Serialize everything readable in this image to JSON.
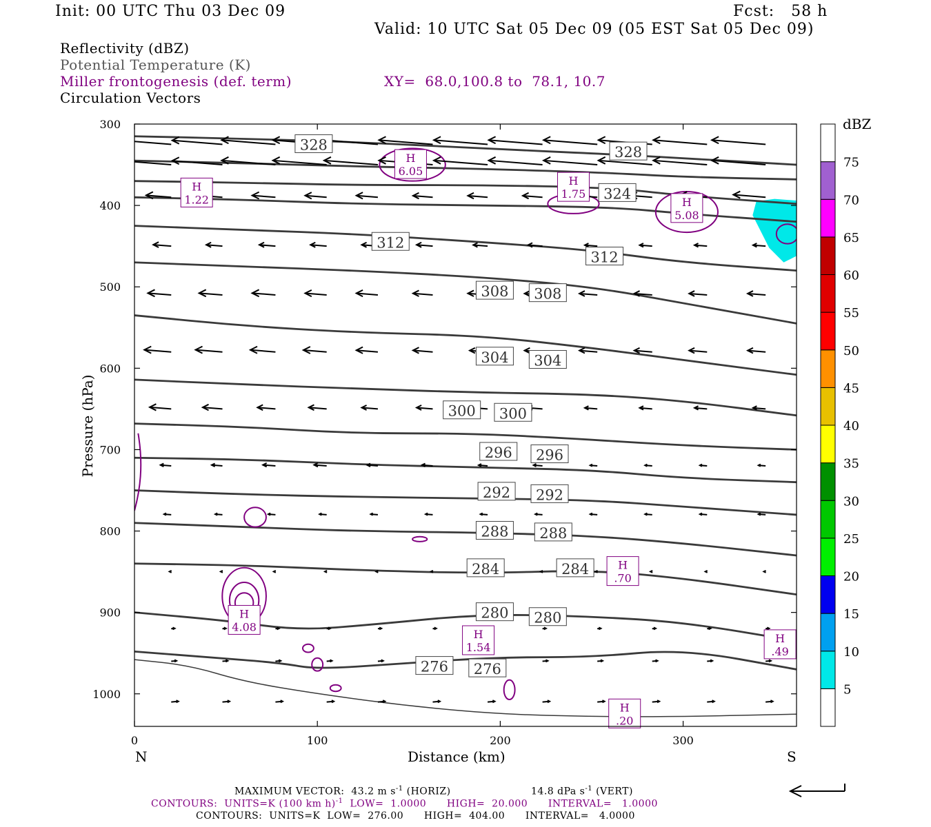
{
  "header": {
    "init": "Init: 00 UTC Thu 03 Dec 09",
    "fcst": "Fcst:   58 h",
    "valid": "Valid: 10 UTC Sat 05 Dec 09 (05 EST Sat 05 Dec 09)"
  },
  "legend": {
    "reflectivity": "Reflectivity (dBZ)",
    "theta": "Potential Temperature (K)",
    "frontogenesis": "Miller frontogenesis (def. term)",
    "xy": "XY=  68.0,100.8 to  78.1, 10.7",
    "vectors": "Circulation Vectors"
  },
  "colors": {
    "frontogenesis": "#800080",
    "theta": "#3a3a3a",
    "reflectivity_fill": "#00e8e8"
  },
  "footer": {
    "max_vector": "MAXIMUM VECTOR:  43.2 m s",
    "max_vector_unit_exp": "-1",
    "horiz": "(HORIZ)",
    "vert_value": "14.8 dPa s",
    "vert_unit_exp": "-1",
    "vert": "(VERT)",
    "contours_fg_a": "CONTOURS:  UNITS=K (100 km h)",
    "contours_fg_exp": "-1",
    "contours_fg_b": "LOW=  1.0000      HIGH=  20.000      INTERVAL=   1.0000",
    "contours_theta": "CONTOURS:  UNITS=K  LOW=  276.00      HIGH=  404.00      INTERVAL=   4.0000"
  },
  "chart_data": {
    "type": "cross-section",
    "xlabel": "Distance (km)",
    "ylabel": "Pressure (hPa)",
    "xlim": [
      0,
      362
    ],
    "ylim": [
      300,
      1040
    ],
    "x_ticks": [
      0,
      100,
      200,
      300
    ],
    "y_ticks": [
      300,
      400,
      500,
      600,
      700,
      800,
      900,
      1000
    ],
    "x_end_labels": {
      "left": "N",
      "right": "S"
    },
    "colorbar": {
      "title": "dBZ",
      "levels": [
        5,
        10,
        15,
        20,
        25,
        30,
        35,
        40,
        45,
        50,
        55,
        60,
        65,
        70,
        75
      ],
      "colors": [
        "#00e8e8",
        "#00a0f0",
        "#0000f0",
        "#00f000",
        "#00c800",
        "#009000",
        "#ffff00",
        "#e8c000",
        "#ff9000",
        "#ff0000",
        "#e00000",
        "#c00000",
        "#ff00ff",
        "#a060d0",
        "#ffffff"
      ]
    },
    "theta_contours": [
      {
        "value": 276,
        "points": [
          [
            0,
            958
          ],
          [
            30,
            965
          ],
          [
            60,
            985
          ],
          [
            100,
            1000
          ],
          [
            150,
            1015
          ],
          [
            200,
            1025
          ],
          [
            250,
            1028
          ],
          [
            300,
            1028
          ],
          [
            362,
            1025
          ]
        ],
        "labels": [
          [
            164,
            966
          ],
          [
            193,
            969
          ]
        ]
      },
      {
        "value": 276,
        "points": [
          [
            0,
            948
          ],
          [
            40,
            955
          ],
          [
            80,
            962
          ],
          [
            100,
            970
          ],
          [
            150,
            962
          ],
          [
            200,
            955
          ],
          [
            250,
            955
          ],
          [
            300,
            945
          ],
          [
            362,
            970
          ]
        ]
      },
      {
        "value": 280,
        "points": [
          [
            0,
            900
          ],
          [
            50,
            910
          ],
          [
            90,
            922
          ],
          [
            130,
            915
          ],
          [
            190,
            902
          ],
          [
            250,
            905
          ],
          [
            300,
            912
          ],
          [
            362,
            935
          ]
        ],
        "labels": [
          [
            197,
            900
          ],
          [
            226,
            906
          ]
        ]
      },
      {
        "value": 284,
        "points": [
          [
            0,
            840
          ],
          [
            60,
            842
          ],
          [
            120,
            848
          ],
          [
            190,
            852
          ],
          [
            250,
            848
          ],
          [
            300,
            858
          ],
          [
            362,
            878
          ]
        ],
        "labels": [
          [
            192,
            846
          ],
          [
            241,
            846
          ]
        ]
      },
      {
        "value": 288,
        "points": [
          [
            0,
            790
          ],
          [
            60,
            795
          ],
          [
            120,
            800
          ],
          [
            190,
            802
          ],
          [
            250,
            806
          ],
          [
            300,
            815
          ],
          [
            362,
            830
          ]
        ],
        "labels": [
          [
            197,
            800
          ],
          [
            229,
            802
          ]
        ]
      },
      {
        "value": 292,
        "points": [
          [
            0,
            750
          ],
          [
            60,
            755
          ],
          [
            120,
            758
          ],
          [
            190,
            760
          ],
          [
            250,
            762
          ],
          [
            300,
            770
          ],
          [
            362,
            780
          ]
        ],
        "labels": [
          [
            198,
            752
          ],
          [
            227,
            755
          ]
        ]
      },
      {
        "value": 296,
        "points": [
          [
            0,
            710
          ],
          [
            60,
            712
          ],
          [
            120,
            718
          ],
          [
            190,
            722
          ],
          [
            250,
            725
          ],
          [
            300,
            735
          ],
          [
            362,
            740
          ]
        ],
        "labels": [
          [
            199,
            703
          ],
          [
            227,
            706
          ]
        ]
      },
      {
        "value": 300,
        "points": [
          [
            0,
            668
          ],
          [
            60,
            672
          ],
          [
            120,
            680
          ],
          [
            180,
            680
          ],
          [
            230,
            685
          ],
          [
            300,
            695
          ],
          [
            362,
            700
          ]
        ],
        "labels": [
          [
            179,
            652
          ],
          [
            207,
            655
          ]
        ]
      },
      {
        "value": 304,
        "points": [
          [
            0,
            614
          ],
          [
            60,
            620
          ],
          [
            120,
            625
          ],
          [
            190,
            630
          ],
          [
            250,
            632
          ],
          [
            300,
            640
          ],
          [
            362,
            658
          ]
        ],
        "labels": [
          [
            197,
            586
          ],
          [
            226,
            590
          ]
        ]
      },
      {
        "value": 304,
        "points": [
          [
            0,
            535
          ],
          [
            60,
            548
          ],
          [
            120,
            556
          ],
          [
            190,
            560
          ],
          [
            250,
            575
          ],
          [
            300,
            590
          ],
          [
            362,
            608
          ]
        ]
      },
      {
        "value": 308,
        "points": [
          [
            0,
            470
          ],
          [
            60,
            475
          ],
          [
            120,
            480
          ],
          [
            190,
            488
          ],
          [
            250,
            500
          ],
          [
            300,
            520
          ],
          [
            362,
            545
          ]
        ],
        "labels": [
          [
            197,
            505
          ],
          [
            226,
            508
          ]
        ]
      },
      {
        "value": 312,
        "points": [
          [
            0,
            425
          ],
          [
            60,
            430
          ],
          [
            120,
            435
          ],
          [
            190,
            445
          ],
          [
            250,
            455
          ],
          [
            300,
            470
          ],
          [
            362,
            480
          ]
        ],
        "labels": [
          [
            140,
            445
          ],
          [
            257,
            463
          ]
        ]
      },
      {
        "value": 324,
        "points": [
          [
            0,
            390
          ],
          [
            60,
            393
          ],
          [
            120,
            398
          ],
          [
            190,
            400
          ],
          [
            260,
            402
          ],
          [
            300,
            410
          ],
          [
            362,
            420
          ]
        ],
        "labels": [
          [
            264,
            385
          ]
        ]
      },
      {
        "value": 328,
        "points": [
          [
            0,
            370
          ],
          [
            60,
            372
          ],
          [
            120,
            375
          ],
          [
            190,
            375
          ],
          [
            260,
            378
          ],
          [
            300,
            388
          ],
          [
            362,
            398
          ]
        ]
      },
      {
        "value": 328,
        "points": [
          [
            0,
            345
          ],
          [
            60,
            348
          ],
          [
            120,
            352
          ],
          [
            190,
            355
          ],
          [
            260,
            360
          ],
          [
            300,
            365
          ],
          [
            362,
            368
          ]
        ]
      },
      {
        "value": 328,
        "points": [
          [
            0,
            315
          ],
          [
            60,
            318
          ],
          [
            120,
            322
          ],
          [
            190,
            330
          ],
          [
            260,
            337
          ],
          [
            300,
            342
          ],
          [
            362,
            350
          ]
        ],
        "labels": [
          [
            98,
            325
          ],
          [
            270,
            334
          ]
        ]
      }
    ],
    "frontogenesis_maxima": [
      {
        "label": "H",
        "value": "6.05",
        "x": 151,
        "p": 350
      },
      {
        "label": "H",
        "value": "1.22",
        "x": 34,
        "p": 385
      },
      {
        "label": "H",
        "value": "1.75",
        "x": 240,
        "p": 378
      },
      {
        "label": "H",
        "value": "5.08",
        "x": 302,
        "p": 404
      },
      {
        "label": "H",
        "value": ".70",
        "x": 267,
        "p": 850
      },
      {
        "label": "H",
        "value": "4.08",
        "x": 60,
        "p": 910
      },
      {
        "label": "H",
        "value": "1.54",
        "x": 188,
        "p": 935
      },
      {
        "label": "H",
        "value": ".49",
        "x": 353,
        "p": 940
      },
      {
        "label": "H",
        "value": ".20",
        "x": 268,
        "p": 1025
      }
    ],
    "vectors_rows": [
      {
        "p": 325,
        "u": [
          -27,
          -28,
          -30,
          -30,
          -30,
          -30,
          -30,
          -30,
          -30,
          -30,
          -30,
          -30
        ]
      },
      {
        "p": 350,
        "u": [
          -28,
          -28,
          -30,
          -30,
          -30,
          -30,
          -30,
          -30,
          -30,
          -30,
          -30,
          -30
        ]
      },
      {
        "p": 390,
        "u": [
          -14,
          -14,
          -13,
          -12,
          -12,
          -11,
          -11,
          -11,
          -12,
          -12,
          -15,
          -18
        ]
      },
      {
        "p": 450,
        "u": [
          -10,
          -9,
          -9,
          -9,
          -9,
          -9,
          -8,
          -8,
          -7,
          -7,
          -7,
          -7
        ]
      },
      {
        "p": 510,
        "u": [
          -13,
          -13,
          -13,
          -12,
          -12,
          -11,
          -11,
          -10,
          -10,
          -10,
          -10,
          -10
        ]
      },
      {
        "p": 580,
        "u": [
          -15,
          -15,
          -14,
          -13,
          -12,
          -11,
          -10,
          -10,
          -10,
          -10,
          -10,
          -10
        ]
      },
      {
        "p": 650,
        "u": [
          -12,
          -11,
          -10,
          -10,
          -9,
          -9,
          -8,
          -8,
          -7,
          -7,
          -7,
          -7
        ]
      },
      {
        "p": 720,
        "u": [
          -6,
          -6,
          -7,
          -7,
          -6,
          -6,
          -5,
          -5,
          -4,
          -4,
          -4,
          -4
        ]
      },
      {
        "p": 780,
        "u": [
          -4,
          -4,
          -4,
          -4,
          -4,
          -4,
          -4,
          -4,
          -4,
          -4,
          -4,
          -4
        ]
      },
      {
        "p": 850,
        "u": [
          -1,
          -1,
          -1,
          -1,
          -1,
          -1,
          -1,
          -1,
          -1,
          -1,
          -1,
          -1
        ]
      },
      {
        "p": 920,
        "u": [
          2,
          2,
          2,
          2,
          2,
          2,
          2,
          2,
          2,
          2,
          2,
          2
        ]
      },
      {
        "p": 960,
        "u": [
          3,
          3,
          3,
          3,
          3,
          3,
          3,
          3,
          3,
          3,
          3,
          3
        ]
      },
      {
        "p": 1010,
        "u": [
          4,
          4,
          4,
          4,
          4,
          4,
          4,
          4,
          4,
          4,
          4,
          4
        ]
      }
    ]
  }
}
